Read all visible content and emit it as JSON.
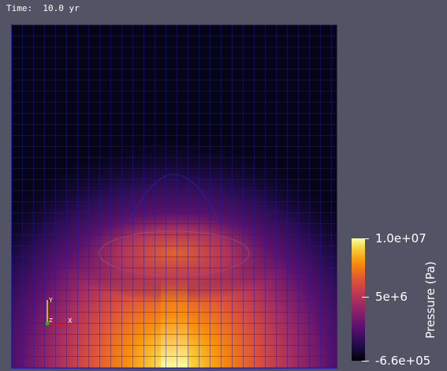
{
  "time": {
    "label": "Time:",
    "value": "10.0 yr"
  },
  "colorbar": {
    "title": "Pressure (Pa)",
    "max_label": "1.0e+07",
    "mid_label": "5e+6",
    "min_label": "-6.6e+05",
    "range": [
      -660000,
      10000000
    ],
    "colormap": "inferno"
  },
  "axes": {
    "x": "X",
    "y": "Y",
    "z": "Z"
  },
  "colors": {
    "background": "#525466",
    "mesh_lines": "#1a1aa8",
    "text": "#ffffff"
  }
}
